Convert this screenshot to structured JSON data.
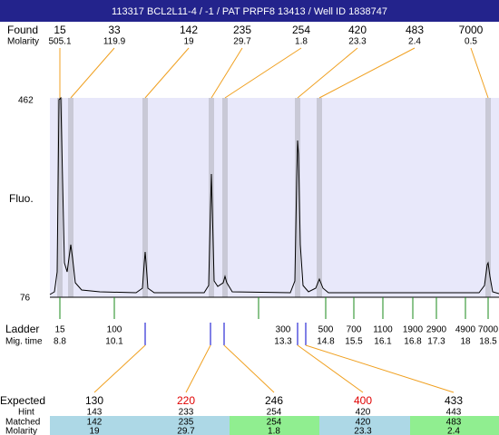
{
  "header": {
    "title": "113317  BCL2L11-4 / -1 / PAT PRPF8 13413 / Well ID 1838747"
  },
  "found": {
    "label": "Found",
    "molarity_label": "Molarity",
    "sizes": [
      15,
      33,
      142,
      235,
      254,
      420,
      483,
      7000
    ],
    "molarity": [
      505.1,
      119.9,
      19,
      29.7,
      1.8,
      23.3,
      2.4,
      0.5
    ]
  },
  "axis": {
    "label": "Fluo.",
    "top": 462,
    "bottom": 76
  },
  "ladder": {
    "label": "Ladder",
    "mig_label": "Mig. time",
    "sizes": [
      15,
      100,
      300,
      500,
      700,
      1100,
      1900,
      2900,
      4900,
      7000
    ],
    "mig_times": [
      8.8,
      10.1,
      13.3,
      14.8,
      15.5,
      16.1,
      16.8,
      17.3,
      18,
      18.5
    ]
  },
  "table": {
    "expected_label": "Expected",
    "hint_label": "Hint",
    "matched_label": "Matched",
    "molarity_label": "Molarity",
    "expected": [
      130,
      220,
      246,
      400,
      433
    ],
    "hint": [
      143,
      233,
      254,
      420,
      443
    ],
    "matched": [
      142,
      235,
      254,
      420,
      483
    ],
    "molarity": [
      19,
      29.7,
      1.8,
      23.3,
      2.4
    ]
  }
}
